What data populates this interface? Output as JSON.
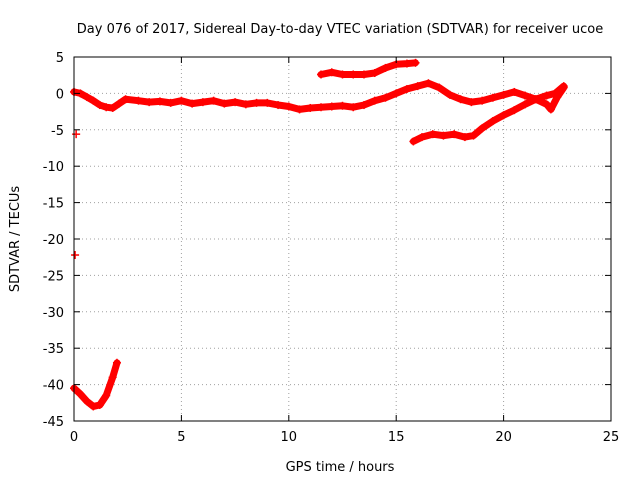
{
  "chart_data": {
    "type": "scatter",
    "title": "Day 076 of 2017, Sidereal Day-to-day VTEC variation (SDTVAR) for receiver ucoe",
    "xlabel": "GPS time / hours",
    "ylabel": "SDTVAR / TECUs",
    "xlim": [
      0,
      25
    ],
    "ylim": [
      -45,
      5
    ],
    "xticks": [
      0,
      5,
      10,
      15,
      20,
      25
    ],
    "xtick_labels": [
      "0",
      "5",
      "10",
      "15",
      "20",
      "25"
    ],
    "yticks": [
      5,
      0,
      -5,
      -10,
      -15,
      -20,
      -25,
      -30,
      -35,
      -40,
      -45
    ],
    "ytick_labels": [
      "5",
      "0",
      "-5",
      "-10",
      "-15",
      "-20",
      "-25",
      "-30",
      "-35",
      "-40",
      "-45"
    ],
    "grid": true,
    "marker": "plus",
    "color": "#ff0000",
    "series": [
      {
        "name": "main-trace",
        "points": [
          [
            0.0,
            0.2
          ],
          [
            0.3,
            0.0
          ],
          [
            0.6,
            -0.5
          ],
          [
            0.9,
            -1.0
          ],
          [
            1.2,
            -1.6
          ],
          [
            1.5,
            -1.9
          ],
          [
            1.8,
            -2.0
          ],
          [
            2.1,
            -1.4
          ],
          [
            2.4,
            -0.8
          ],
          [
            3.0,
            -1.0
          ],
          [
            3.5,
            -1.2
          ],
          [
            4.0,
            -1.1
          ],
          [
            4.5,
            -1.3
          ],
          [
            5.0,
            -1.0
          ],
          [
            5.5,
            -1.4
          ],
          [
            6.0,
            -1.2
          ],
          [
            6.5,
            -1.0
          ],
          [
            7.0,
            -1.4
          ],
          [
            7.5,
            -1.2
          ],
          [
            8.0,
            -1.5
          ],
          [
            8.5,
            -1.3
          ],
          [
            9.0,
            -1.3
          ],
          [
            9.5,
            -1.6
          ],
          [
            10.0,
            -1.8
          ],
          [
            10.5,
            -2.2
          ],
          [
            11.0,
            -2.0
          ],
          [
            11.5,
            -1.9
          ],
          [
            12.0,
            -1.8
          ],
          [
            12.5,
            -1.7
          ],
          [
            13.0,
            -1.9
          ],
          [
            13.5,
            -1.6
          ],
          [
            14.0,
            -1.0
          ],
          [
            14.5,
            -0.6
          ],
          [
            15.0,
            0.0
          ],
          [
            15.5,
            0.6
          ],
          [
            16.0,
            1.0
          ],
          [
            16.5,
            1.4
          ],
          [
            17.0,
            0.8
          ],
          [
            17.5,
            -0.2
          ],
          [
            18.0,
            -0.8
          ],
          [
            18.5,
            -1.2
          ],
          [
            19.0,
            -1.0
          ],
          [
            19.5,
            -0.6
          ],
          [
            20.0,
            -0.2
          ],
          [
            20.5,
            0.2
          ],
          [
            21.0,
            -0.3
          ],
          [
            21.5,
            -0.8
          ],
          [
            22.0,
            -1.5
          ],
          [
            22.2,
            -2.2
          ],
          [
            22.5,
            -0.5
          ],
          [
            22.8,
            0.8
          ]
        ]
      },
      {
        "name": "upper-arc",
        "points": [
          [
            11.5,
            2.6
          ],
          [
            12.0,
            2.9
          ],
          [
            12.5,
            2.6
          ],
          [
            13.0,
            2.6
          ],
          [
            13.5,
            2.6
          ],
          [
            14.0,
            2.8
          ],
          [
            14.5,
            3.5
          ],
          [
            15.0,
            4.0
          ],
          [
            15.5,
            4.1
          ],
          [
            15.9,
            4.2
          ]
        ]
      },
      {
        "name": "lower-arc",
        "points": [
          [
            15.8,
            -6.6
          ],
          [
            16.2,
            -6.0
          ],
          [
            16.7,
            -5.6
          ],
          [
            17.2,
            -5.8
          ],
          [
            17.7,
            -5.6
          ],
          [
            18.2,
            -6.0
          ],
          [
            18.6,
            -5.8
          ],
          [
            19.0,
            -4.8
          ],
          [
            19.5,
            -3.8
          ],
          [
            20.0,
            -3.0
          ],
          [
            20.5,
            -2.3
          ],
          [
            21.0,
            -1.5
          ],
          [
            21.5,
            -0.8
          ],
          [
            22.0,
            -0.3
          ],
          [
            22.4,
            0.0
          ],
          [
            22.8,
            1.0
          ]
        ]
      },
      {
        "name": "early-trace",
        "points": [
          [
            0.0,
            -40.5
          ],
          [
            0.3,
            -41.3
          ],
          [
            0.6,
            -42.3
          ],
          [
            0.9,
            -43.0
          ],
          [
            1.2,
            -42.8
          ],
          [
            1.5,
            -41.5
          ],
          [
            1.8,
            -39.0
          ],
          [
            2.0,
            -37.0
          ]
        ]
      },
      {
        "name": "isolated-point-upper",
        "points": [
          [
            0.1,
            -5.6
          ]
        ]
      },
      {
        "name": "isolated-point-lower",
        "points": [
          [
            0.05,
            -22.2
          ]
        ]
      }
    ]
  }
}
